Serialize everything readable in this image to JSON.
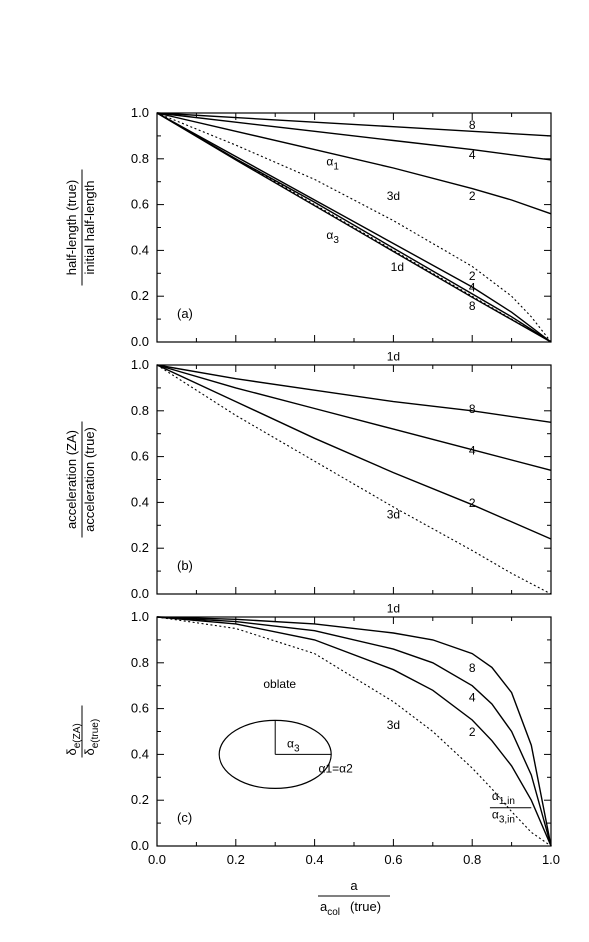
{
  "chart_data": [
    {
      "type": "line",
      "panel": "(a)",
      "ylabel_numerator": "half-length (true)",
      "ylabel_denominator": "initial half-length",
      "ylim": [
        0,
        1.0
      ],
      "xlim": [
        0,
        1.0
      ],
      "ytick_labels": [
        "0.0",
        "0.2",
        "0.4",
        "0.6",
        "0.8",
        "1.0"
      ],
      "annotations": [
        {
          "text": "α1",
          "x": 0.43,
          "y": 0.77
        },
        {
          "text": "α3",
          "x": 0.43,
          "y": 0.45
        },
        {
          "text": "3d",
          "x": 0.6,
          "y": 0.62
        },
        {
          "text": "1d",
          "x": 0.61,
          "y": 0.31
        }
      ],
      "series": [
        {
          "name": "8",
          "style": "solid",
          "x": [
            0,
            0.2,
            0.4,
            0.6,
            0.8,
            1.0
          ],
          "y": [
            1.0,
            0.98,
            0.96,
            0.94,
            0.92,
            0.9
          ]
        },
        {
          "name": "4",
          "style": "solid",
          "x": [
            0,
            0.2,
            0.4,
            0.6,
            0.8,
            1.0
          ],
          "y": [
            1.0,
            0.96,
            0.92,
            0.88,
            0.84,
            0.795
          ]
        },
        {
          "name": "2",
          "style": "solid",
          "x": [
            0,
            0.2,
            0.4,
            0.6,
            0.8,
            0.9,
            1.0
          ],
          "y": [
            1.0,
            0.92,
            0.84,
            0.76,
            0.67,
            0.62,
            0.56
          ]
        },
        {
          "name": "3d",
          "style": "dotted",
          "x": [
            0,
            0.2,
            0.4,
            0.6,
            0.7,
            0.8,
            0.9,
            0.95,
            1.0
          ],
          "y": [
            1.0,
            0.86,
            0.71,
            0.53,
            0.43,
            0.33,
            0.2,
            0.11,
            0.0
          ]
        },
        {
          "name": "2",
          "style": "solid",
          "x": [
            0,
            0.2,
            0.4,
            0.6,
            0.8,
            0.9,
            1.0
          ],
          "y": [
            1.0,
            0.81,
            0.62,
            0.43,
            0.24,
            0.13,
            0.0
          ]
        },
        {
          "name": "4",
          "style": "solid",
          "x": [
            0,
            0.2,
            0.4,
            0.6,
            0.8,
            0.9,
            1.0
          ],
          "y": [
            1.0,
            0.8,
            0.61,
            0.41,
            0.21,
            0.11,
            0.0
          ]
        },
        {
          "name": "8",
          "style": "solid",
          "x": [
            0,
            0.2,
            0.4,
            0.6,
            0.8,
            1.0
          ],
          "y": [
            1.0,
            0.795,
            0.595,
            0.395,
            0.195,
            0.0
          ]
        },
        {
          "name": "1d",
          "style": "dotted",
          "x": [
            0,
            1.0
          ],
          "y": [
            1.0,
            0.0
          ]
        }
      ],
      "series_labels": [
        {
          "text": "8",
          "x": 0.8,
          "y": 0.93
        },
        {
          "text": "4",
          "x": 0.8,
          "y": 0.8
        },
        {
          "text": "2",
          "x": 0.8,
          "y": 0.62
        },
        {
          "text": "2",
          "x": 0.8,
          "y": 0.27
        },
        {
          "text": "4",
          "x": 0.8,
          "y": 0.22
        },
        {
          "text": "8",
          "x": 0.8,
          "y": 0.14
        }
      ]
    },
    {
      "type": "line",
      "panel": "(b)",
      "ylabel_numerator": "acceleration (ZA)",
      "ylabel_denominator": "acceleration (true)",
      "ylim": [
        0,
        1.0
      ],
      "xlim": [
        0,
        1.0
      ],
      "ytick_labels": [
        "0.0",
        "0.2",
        "0.4",
        "0.6",
        "0.8",
        "1.0"
      ],
      "annotations": [
        {
          "text": "1d",
          "x": 0.6,
          "y": 1.02
        },
        {
          "text": "3d",
          "x": 0.6,
          "y": 0.33
        }
      ],
      "series": [
        {
          "name": "1d",
          "style": "dotted",
          "x": [
            0,
            1.0
          ],
          "y": [
            1.0,
            1.0
          ]
        },
        {
          "name": "8",
          "style": "solid",
          "x": [
            0,
            0.2,
            0.4,
            0.6,
            0.8,
            1.0
          ],
          "y": [
            1.0,
            0.94,
            0.89,
            0.84,
            0.8,
            0.75
          ]
        },
        {
          "name": "4",
          "style": "solid",
          "x": [
            0,
            0.2,
            0.4,
            0.6,
            0.8,
            1.0
          ],
          "y": [
            1.0,
            0.9,
            0.81,
            0.72,
            0.63,
            0.54
          ]
        },
        {
          "name": "2",
          "style": "solid",
          "x": [
            0,
            0.2,
            0.4,
            0.6,
            0.8,
            1.0
          ],
          "y": [
            1.0,
            0.84,
            0.68,
            0.53,
            0.39,
            0.24
          ]
        },
        {
          "name": "3d",
          "style": "dotted",
          "x": [
            0,
            0.2,
            0.4,
            0.6,
            0.8,
            0.9,
            1.0
          ],
          "y": [
            1.0,
            0.78,
            0.58,
            0.38,
            0.19,
            0.09,
            0.0
          ]
        }
      ],
      "series_labels": [
        {
          "text": "8",
          "x": 0.8,
          "y": 0.79
        },
        {
          "text": "4",
          "x": 0.8,
          "y": 0.61
        },
        {
          "text": "2",
          "x": 0.8,
          "y": 0.38
        }
      ]
    },
    {
      "type": "line",
      "panel": "(c)",
      "ylabel_numerator": "δe(ZA)",
      "ylabel_denominator": "δe(true)",
      "ylim": [
        0,
        1.0
      ],
      "xlim": [
        0,
        1.0
      ],
      "xlabel_numerator": "a",
      "xlabel_denominator": "acol(true)",
      "xtick_labels": [
        "0.0",
        "0.2",
        "0.4",
        "0.6",
        "0.8",
        "1.0"
      ],
      "ytick_labels": [
        "0.0",
        "0.2",
        "0.4",
        "0.6",
        "0.8",
        "1.0"
      ],
      "annotations": [
        {
          "text": "1d",
          "x": 0.6,
          "y": 1.02
        },
        {
          "text": "3d",
          "x": 0.6,
          "y": 0.51
        },
        {
          "text": "oblate",
          "x": 0.27,
          "y": 0.69
        },
        {
          "text": "α3",
          "x": 0.33,
          "y": 0.43
        },
        {
          "text": "α1=α2",
          "x": 0.41,
          "y": 0.32
        },
        {
          "text": "α1,in",
          "x": 0.85,
          "y": 0.2
        },
        {
          "text": "α3,in",
          "x": 0.85,
          "y": 0.12
        }
      ],
      "series": [
        {
          "name": "1d",
          "style": "dotted",
          "x": [
            0,
            1.0
          ],
          "y": [
            1.0,
            1.0
          ]
        },
        {
          "name": "8",
          "style": "solid",
          "x": [
            0,
            0.2,
            0.4,
            0.6,
            0.7,
            0.8,
            0.85,
            0.9,
            0.95,
            1.0
          ],
          "y": [
            1.0,
            0.99,
            0.97,
            0.93,
            0.9,
            0.84,
            0.78,
            0.67,
            0.44,
            0.0
          ]
        },
        {
          "name": "4",
          "style": "solid",
          "x": [
            0,
            0.2,
            0.4,
            0.6,
            0.7,
            0.8,
            0.85,
            0.9,
            0.95,
            1.0
          ],
          "y": [
            1.0,
            0.98,
            0.94,
            0.86,
            0.8,
            0.7,
            0.62,
            0.5,
            0.31,
            0.0
          ]
        },
        {
          "name": "2",
          "style": "solid",
          "x": [
            0,
            0.2,
            0.4,
            0.6,
            0.7,
            0.8,
            0.85,
            0.9,
            0.95,
            1.0
          ],
          "y": [
            1.0,
            0.97,
            0.9,
            0.77,
            0.68,
            0.55,
            0.46,
            0.35,
            0.2,
            0.0
          ]
        },
        {
          "name": "3d",
          "style": "dotted",
          "x": [
            0,
            0.2,
            0.4,
            0.6,
            0.7,
            0.8,
            0.85,
            0.9,
            0.95,
            1.0
          ],
          "y": [
            1.0,
            0.95,
            0.84,
            0.63,
            0.5,
            0.34,
            0.25,
            0.15,
            0.06,
            0.0
          ]
        }
      ],
      "series_labels": [
        {
          "text": "8",
          "x": 0.8,
          "y": 0.76
        },
        {
          "text": "4",
          "x": 0.8,
          "y": 0.63
        },
        {
          "text": "2",
          "x": 0.8,
          "y": 0.48
        }
      ]
    }
  ]
}
